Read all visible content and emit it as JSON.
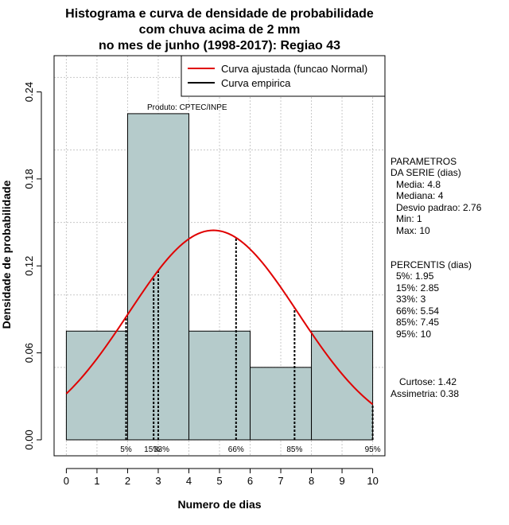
{
  "chart_data": {
    "type": "histogram",
    "title_lines": [
      "Histograma e curva de densidade de probabilidade",
      "com chuva acima de 2 mm",
      "no mes de junho (1998-2017): Regiao 43"
    ],
    "xlabel": "Numero de dias",
    "ylabel": "Densidade de probabilidade",
    "xlim": [
      -0.4,
      10.4
    ],
    "ylim": [
      -0.011,
      0.265
    ],
    "x_ticks": [
      "0",
      "1",
      "2",
      "3",
      "4",
      "5",
      "6",
      "7",
      "8",
      "9",
      "10"
    ],
    "y_ticks": [
      "0.00",
      "0.06",
      "0.12",
      "0.18",
      "0.24"
    ],
    "bins": [
      {
        "from": 0,
        "to": 2,
        "density": 0.075
      },
      {
        "from": 2,
        "to": 4,
        "density": 0.225
      },
      {
        "from": 4,
        "to": 6,
        "density": 0.075
      },
      {
        "from": 6,
        "to": 8,
        "density": 0.05
      },
      {
        "from": 8,
        "to": 10,
        "density": 0.075
      }
    ],
    "normal_curve": {
      "mean": 4.8,
      "sd": 2.76,
      "x_from": 0,
      "x_to": 10
    },
    "percentiles": [
      {
        "label": "5%",
        "value": 1.95
      },
      {
        "label": "15%",
        "value": 2.85
      },
      {
        "label": "33%",
        "value": 3
      },
      {
        "label": "66%",
        "value": 5.54
      },
      {
        "label": "85%",
        "value": 7.45
      },
      {
        "label": "95%",
        "value": 10
      }
    ],
    "source_label": "Produto: CPTEC/INPE",
    "legend": [
      {
        "label": "Curva ajustada (funcao Normal)",
        "color": "#e00000"
      },
      {
        "label": "Curva empirica",
        "color": "#000000"
      }
    ],
    "bar_color": "#b5cbcb",
    "curve_color": "#e00000"
  },
  "side_panel": {
    "params_title": [
      "PARAMETROS",
      "DA SERIE (dias)"
    ],
    "params": [
      "Media: 4.8",
      "Mediana: 4",
      "Desvio padrao: 2.76",
      "Min: 1",
      "Max: 10"
    ],
    "percentis_title": "PERCENTIS (dias)",
    "percentis": [
      "5%: 1.95",
      "15%: 2.85",
      "33%: 3",
      "66%: 5.54",
      "85%: 7.45",
      "95%: 10"
    ],
    "curtose": "Curtose: 1.42",
    "assimetria": "Assimetria: 0.38"
  }
}
